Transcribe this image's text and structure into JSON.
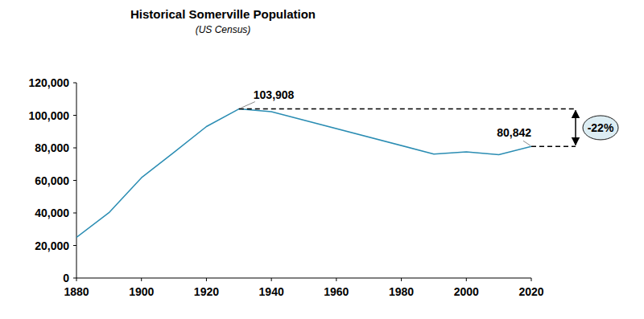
{
  "chart_data": {
    "type": "line",
    "title": "Historical Somerville Population",
    "subtitle": "(US Census)",
    "x": [
      1880,
      1890,
      1900,
      1910,
      1920,
      1930,
      1940,
      1990,
      2000,
      2010,
      2020
    ],
    "values": [
      24933,
      40152,
      61643,
      77236,
      93091,
      103908,
      102177,
      76210,
      77478,
      75754,
      80842
    ],
    "color": "#2b8db3",
    "xlim": [
      1880,
      2020
    ],
    "xticks": [
      1880,
      1900,
      1920,
      1940,
      1960,
      1980,
      2000,
      2020
    ],
    "ylim": [
      0,
      120000
    ],
    "yticks": [
      0,
      {
        "value": 20000,
        "label": "20,000"
      },
      {
        "value": 40000,
        "label": "40,000"
      },
      {
        "value": 60000,
        "label": "60,000"
      },
      {
        "value": 80000,
        "label": "80,000"
      },
      {
        "value": 100000,
        "label": "100,000"
      },
      {
        "value": 120000,
        "label": "120,000"
      }
    ],
    "grid": false,
    "annotations": [
      {
        "text": "103,908",
        "x": 1930,
        "value": 103908
      },
      {
        "text": "80,842",
        "x": 2020,
        "value": 80842
      },
      {
        "text": "-22%"
      }
    ]
  }
}
